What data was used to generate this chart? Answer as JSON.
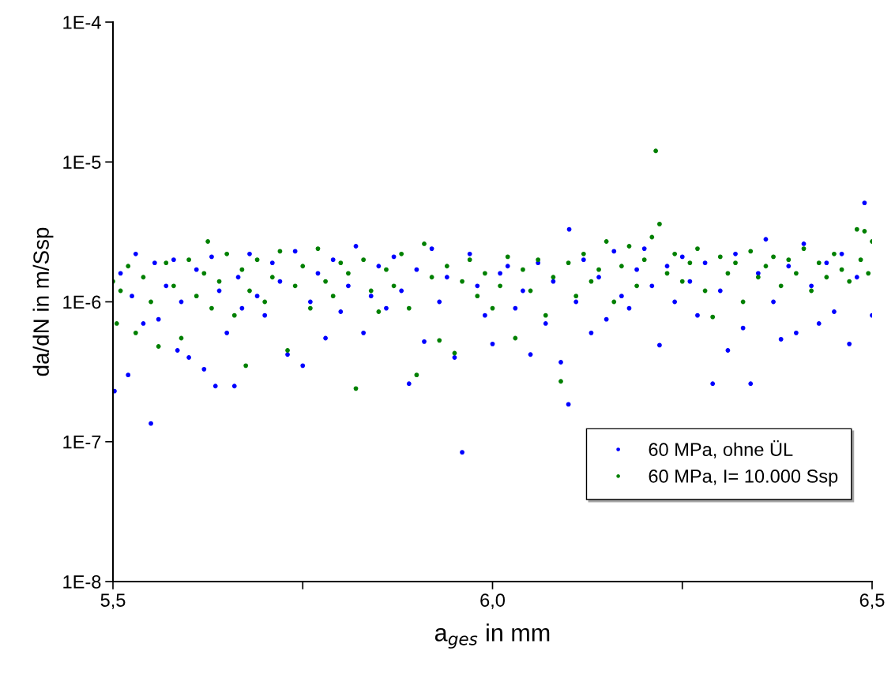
{
  "chart_data": {
    "type": "scatter",
    "xlabel": "a$_{ges}$ in mm",
    "ylabel": "da/dN in m/Ssp",
    "log": "y",
    "grid": false,
    "legend": "bottom right",
    "marker": "circle",
    "xlim": [
      5.5,
      6.5
    ],
    "xticks": [
      {
        "value": 5.5,
        "label": "5,5"
      },
      {
        "value": 5.75,
        "label": null
      },
      {
        "value": 6.0,
        "label": "6,0"
      },
      {
        "value": 6.25,
        "label": null
      },
      {
        "value": 6.5,
        "label": "6,5"
      }
    ],
    "ylim": [
      1e-08,
      0.0001
    ],
    "yticks": [
      {
        "value": 1e-08,
        "label": "1E-8"
      },
      {
        "value": 1e-07,
        "label": "1E-7"
      },
      {
        "value": 1e-06,
        "label": "1E-6"
      },
      {
        "value": 1e-05,
        "label": "1E-5"
      },
      {
        "value": 0.0001,
        "label": "1E-4"
      }
    ],
    "series": [
      {
        "name": "60 MPa, ohne ÜL",
        "color": "#0000ff",
        "x": [
          5.502,
          5.51,
          5.52,
          5.525,
          5.53,
          5.54,
          5.55,
          5.555,
          5.56,
          5.57,
          5.58,
          5.585,
          5.59,
          5.6,
          5.61,
          5.62,
          5.63,
          5.635,
          5.64,
          5.65,
          5.66,
          5.665,
          5.67,
          5.68,
          5.69,
          5.7,
          5.71,
          5.72,
          5.73,
          5.74,
          5.75,
          5.76,
          5.77,
          5.78,
          5.79,
          5.8,
          5.81,
          5.82,
          5.83,
          5.84,
          5.85,
          5.86,
          5.87,
          5.88,
          5.89,
          5.9,
          5.91,
          5.92,
          5.93,
          5.94,
          5.95,
          5.96,
          5.97,
          5.98,
          5.99,
          6.0,
          6.01,
          6.02,
          6.03,
          6.04,
          6.05,
          6.06,
          6.07,
          6.08,
          6.09,
          6.1,
          6.101,
          6.11,
          6.12,
          6.13,
          6.14,
          6.15,
          6.16,
          6.17,
          6.18,
          6.19,
          6.2,
          6.21,
          6.22,
          6.23,
          6.24,
          6.25,
          6.26,
          6.27,
          6.28,
          6.29,
          6.3,
          6.31,
          6.32,
          6.33,
          6.34,
          6.35,
          6.36,
          6.37,
          6.38,
          6.39,
          6.4,
          6.41,
          6.42,
          6.43,
          6.44,
          6.45,
          6.46,
          6.47,
          6.48,
          6.49,
          6.5
        ],
        "values": [
          2.3e-07,
          1.6e-06,
          3e-07,
          1.1e-06,
          2.2e-06,
          7e-07,
          1.35e-07,
          1.9e-06,
          7.5e-07,
          1.3e-06,
          2e-06,
          4.5e-07,
          1e-06,
          4e-07,
          1.7e-06,
          3.3e-07,
          2.1e-06,
          2.5e-07,
          1.2e-06,
          6e-07,
          2.5e-07,
          1.5e-06,
          9e-07,
          2.2e-06,
          1.1e-06,
          8e-07,
          1.9e-06,
          1.4e-06,
          4.2e-07,
          2.3e-06,
          3.5e-07,
          1e-06,
          1.6e-06,
          5.5e-07,
          2e-06,
          8.5e-07,
          1.3e-06,
          2.5e-06,
          6e-07,
          1.1e-06,
          1.8e-06,
          9e-07,
          2.1e-06,
          1.2e-06,
          2.6e-07,
          1.7e-06,
          5.2e-07,
          2.4e-06,
          1e-06,
          1.5e-06,
          4e-07,
          8.4e-08,
          2.2e-06,
          1.3e-06,
          8e-07,
          5e-07,
          1.6e-06,
          1.8e-06,
          9e-07,
          1.2e-06,
          4.2e-07,
          1.9e-06,
          7e-07,
          1.4e-06,
          3.7e-07,
          1.85e-07,
          3.3e-06,
          1e-06,
          2e-06,
          6e-07,
          1.5e-06,
          7.5e-07,
          2.3e-06,
          1.1e-06,
          9e-07,
          1.7e-06,
          2.4e-06,
          1.3e-06,
          4.9e-07,
          1.8e-06,
          1e-06,
          2.1e-06,
          1.4e-06,
          8e-07,
          1.9e-06,
          2.6e-07,
          1.2e-06,
          4.5e-07,
          2.2e-06,
          6.5e-07,
          2.6e-07,
          1.6e-06,
          2.8e-06,
          1e-06,
          5.4e-07,
          1.8e-06,
          6e-07,
          2.6e-06,
          1.3e-06,
          7e-07,
          1.9e-06,
          8.5e-07,
          2.2e-06,
          5e-07,
          1.5e-06,
          5.1e-06,
          8e-07
        ]
      },
      {
        "name": "60 MPa, I= 10.000 Ssp",
        "color": "#008000",
        "x": [
          5.5,
          5.505,
          5.51,
          5.52,
          5.53,
          5.54,
          5.55,
          5.56,
          5.57,
          5.58,
          5.59,
          5.6,
          5.61,
          5.62,
          5.625,
          5.63,
          5.64,
          5.65,
          5.66,
          5.67,
          5.675,
          5.68,
          5.69,
          5.7,
          5.71,
          5.72,
          5.73,
          5.74,
          5.75,
          5.76,
          5.77,
          5.78,
          5.79,
          5.8,
          5.81,
          5.82,
          5.83,
          5.84,
          5.85,
          5.86,
          5.87,
          5.88,
          5.89,
          5.9,
          5.91,
          5.92,
          5.93,
          5.94,
          5.95,
          5.96,
          5.97,
          5.98,
          5.99,
          6.0,
          6.01,
          6.02,
          6.03,
          6.04,
          6.05,
          6.06,
          6.07,
          6.08,
          6.09,
          6.1,
          6.11,
          6.12,
          6.13,
          6.14,
          6.15,
          6.16,
          6.17,
          6.18,
          6.19,
          6.2,
          6.21,
          6.215,
          6.22,
          6.23,
          6.24,
          6.25,
          6.26,
          6.27,
          6.28,
          6.29,
          6.3,
          6.31,
          6.32,
          6.33,
          6.34,
          6.35,
          6.36,
          6.37,
          6.38,
          6.39,
          6.4,
          6.41,
          6.42,
          6.43,
          6.44,
          6.45,
          6.46,
          6.47,
          6.48,
          6.485,
          6.49,
          6.495,
          6.5
        ],
        "values": [
          1.4e-06,
          7e-07,
          1.2e-06,
          1.8e-06,
          6e-07,
          1.5e-06,
          1e-06,
          4.8e-07,
          1.9e-06,
          1.3e-06,
          5.5e-07,
          2e-06,
          1.1e-06,
          1.6e-06,
          2.7e-06,
          9e-07,
          1.4e-06,
          2.2e-06,
          8e-07,
          1.7e-06,
          3.5e-07,
          1.2e-06,
          2e-06,
          1e-06,
          1.5e-06,
          2.3e-06,
          4.5e-07,
          1.3e-06,
          1.8e-06,
          9e-07,
          2.4e-06,
          1.4e-06,
          1.1e-06,
          1.9e-06,
          1.6e-06,
          2.4e-07,
          2e-06,
          1.2e-06,
          8.5e-07,
          1.7e-06,
          1.3e-06,
          2.2e-06,
          9e-07,
          3e-07,
          2.6e-06,
          1.5e-06,
          5.3e-07,
          1.8e-06,
          4.3e-07,
          1.4e-06,
          2e-06,
          1.1e-06,
          1.6e-06,
          9e-07,
          1.3e-06,
          2.1e-06,
          5.5e-07,
          1.7e-06,
          1.2e-06,
          2e-06,
          8e-07,
          1.5e-06,
          2.7e-07,
          1.9e-06,
          1.1e-06,
          2.2e-06,
          1.4e-06,
          1.7e-06,
          2.7e-06,
          1e-06,
          1.8e-06,
          2.5e-06,
          1.3e-06,
          2e-06,
          2.9e-06,
          1.2e-05,
          3.6e-06,
          1.6e-06,
          2.2e-06,
          1.4e-06,
          1.9e-06,
          2.4e-06,
          1.2e-06,
          7.8e-07,
          2.1e-06,
          1.6e-06,
          1.9e-06,
          1e-06,
          2.3e-06,
          1.5e-06,
          1.8e-06,
          2.1e-06,
          1.3e-06,
          2e-06,
          1.6e-06,
          2.4e-06,
          1.2e-06,
          1.9e-06,
          1.5e-06,
          2.2e-06,
          1.7e-06,
          1.4e-06,
          3.3e-06,
          2e-06,
          3.2e-06,
          1.6e-06,
          2.7e-06
        ]
      }
    ]
  }
}
